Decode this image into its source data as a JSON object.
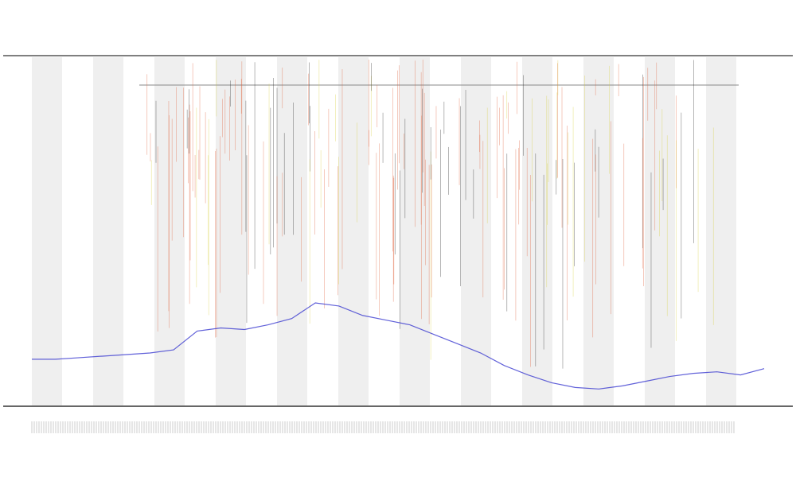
{
  "chart_data": {
    "type": "line",
    "series": [
      {
        "color": "#3a3ad0",
        "values": [
          30,
          30,
          31,
          32,
          33,
          34,
          36,
          48,
          50,
          49,
          52,
          56,
          66,
          64,
          58,
          55,
          52,
          46,
          40,
          34,
          26,
          20,
          15,
          12,
          11,
          13,
          16,
          19,
          21,
          22,
          20,
          24
        ]
      }
    ]
  }
}
